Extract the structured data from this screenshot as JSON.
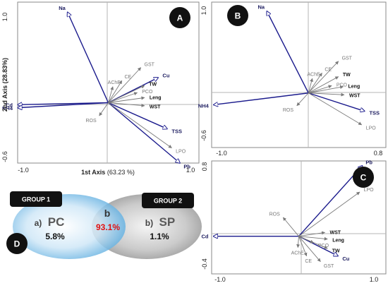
{
  "panels": [
    {
      "id": "A",
      "x_label": "1st Axis",
      "x_pct": "(63.23 %)",
      "y_label": "2nd Axis (28.83%)",
      "x_ticks": [
        "-1.0",
        "1.0"
      ],
      "y_ticks": [
        "1.0",
        "-0.6"
      ]
    },
    {
      "id": "B",
      "x_ticks": [
        "-1.0",
        "0.8"
      ],
      "y_ticks": [
        "1.0",
        "-0.6"
      ]
    },
    {
      "id": "C",
      "x_ticks": [
        "-1.0",
        "1.0"
      ],
      "y_ticks": [
        "0.8",
        "-0.4"
      ]
    }
  ],
  "venn": {
    "badge": "D",
    "group1": "GROUP 1",
    "group2": "GROUP 2",
    "left_prefix": "a)",
    "left_code": "PC",
    "left_pct": "5.8%",
    "mid_code": "b",
    "mid_pct": "93.1%",
    "right_prefix": "b)",
    "right_code": "SP",
    "right_pct": "1.1%"
  },
  "colors": {
    "dark_vector": "#1a1a8c",
    "grey_vector": "#7a7a7a",
    "highlight": "#e01010"
  },
  "chart_data": [
    {
      "panel": "A",
      "type": "scatter",
      "subtype": "biplot",
      "xlim": [
        -1.0,
        1.0
      ],
      "ylim": [
        -0.6,
        1.0
      ],
      "xlabel": "1st Axis (63.23 %)",
      "ylabel": "2nd Axis (28.83%)",
      "vectors": [
        {
          "name": "Na",
          "x": -0.45,
          "y": 0.9,
          "style": "dark"
        },
        {
          "name": "Cd",
          "x": -1.0,
          "y": -0.02,
          "style": "dark"
        },
        {
          "name": "NH4",
          "x": -1.0,
          "y": -0.05,
          "style": "dark"
        },
        {
          "name": "Cu",
          "x": 0.55,
          "y": 0.25,
          "style": "dark"
        },
        {
          "name": "TSS",
          "x": 0.65,
          "y": -0.26,
          "style": "dark"
        },
        {
          "name": "Pb",
          "x": 0.79,
          "y": -0.6,
          "style": "dark"
        },
        {
          "name": "LPO",
          "x": 0.7,
          "y": -0.45,
          "style": "grey"
        },
        {
          "name": "GST",
          "x": 0.36,
          "y": 0.35,
          "style": "grey"
        },
        {
          "name": "CE",
          "x": 0.15,
          "y": 0.22,
          "style": "grey"
        },
        {
          "name": "AChE",
          "x": 0.05,
          "y": 0.16,
          "style": "grey"
        },
        {
          "name": "PCO",
          "x": 0.32,
          "y": 0.1,
          "style": "grey"
        },
        {
          "name": "TW",
          "x": 0.4,
          "y": 0.17,
          "style": "black"
        },
        {
          "name": "Leng",
          "x": 0.4,
          "y": 0.05,
          "style": "black"
        },
        {
          "name": "WST",
          "x": 0.4,
          "y": -0.03,
          "style": "black"
        },
        {
          "name": "ROS",
          "x": -0.1,
          "y": -0.13,
          "style": "grey"
        }
      ]
    },
    {
      "panel": "B",
      "type": "scatter",
      "subtype": "biplot",
      "xlim": [
        -1.0,
        0.8
      ],
      "ylim": [
        -0.6,
        1.0
      ],
      "vectors": [
        {
          "name": "Na",
          "x": -0.43,
          "y": 0.9,
          "style": "dark"
        },
        {
          "name": "NH4",
          "x": -0.98,
          "y": -0.13,
          "style": "dark"
        },
        {
          "name": "TSS",
          "x": 0.58,
          "y": -0.2,
          "style": "dark"
        },
        {
          "name": "LPO",
          "x": 0.55,
          "y": -0.35,
          "style": "grey"
        },
        {
          "name": "GST",
          "x": 0.31,
          "y": 0.35,
          "style": "grey"
        },
        {
          "name": "CE",
          "x": 0.14,
          "y": 0.22,
          "style": "grey"
        },
        {
          "name": "AChE",
          "x": 0.04,
          "y": 0.16,
          "style": "grey"
        },
        {
          "name": "TW",
          "x": 0.31,
          "y": 0.18,
          "style": "black"
        },
        {
          "name": "PCO",
          "x": 0.24,
          "y": 0.08,
          "style": "grey"
        },
        {
          "name": "Leng",
          "x": 0.36,
          "y": 0.07,
          "style": "black"
        },
        {
          "name": "WST",
          "x": 0.37,
          "y": -0.02,
          "style": "black"
        },
        {
          "name": "ROS",
          "x": -0.12,
          "y": -0.14,
          "style": "grey"
        }
      ]
    },
    {
      "panel": "C",
      "type": "scatter",
      "subtype": "biplot",
      "xlim": [
        -1.0,
        1.0
      ],
      "ylim": [
        -0.4,
        0.8
      ],
      "vectors": [
        {
          "name": "Pb",
          "x": 0.73,
          "y": 0.75,
          "style": "dark"
        },
        {
          "name": "Cd",
          "x": -0.98,
          "y": 0.0,
          "style": "dark"
        },
        {
          "name": "Cu",
          "x": 0.45,
          "y": -0.21,
          "style": "dark"
        },
        {
          "name": "LPO",
          "x": 0.7,
          "y": 0.47,
          "style": "grey"
        },
        {
          "name": "ROS",
          "x": -0.18,
          "y": 0.2,
          "style": "grey"
        },
        {
          "name": "WST",
          "x": 0.3,
          "y": 0.04,
          "style": "black"
        },
        {
          "name": "Leng",
          "x": 0.33,
          "y": -0.03,
          "style": "black"
        },
        {
          "name": "PCO",
          "x": 0.17,
          "y": -0.07,
          "style": "grey"
        },
        {
          "name": "TW",
          "x": 0.33,
          "y": -0.13,
          "style": "black"
        },
        {
          "name": "AChE",
          "x": -0.01,
          "y": -0.12,
          "style": "grey"
        },
        {
          "name": "CE",
          "x": 0.09,
          "y": -0.21,
          "style": "grey"
        },
        {
          "name": "GST",
          "x": 0.25,
          "y": -0.27,
          "style": "grey"
        }
      ]
    }
  ]
}
